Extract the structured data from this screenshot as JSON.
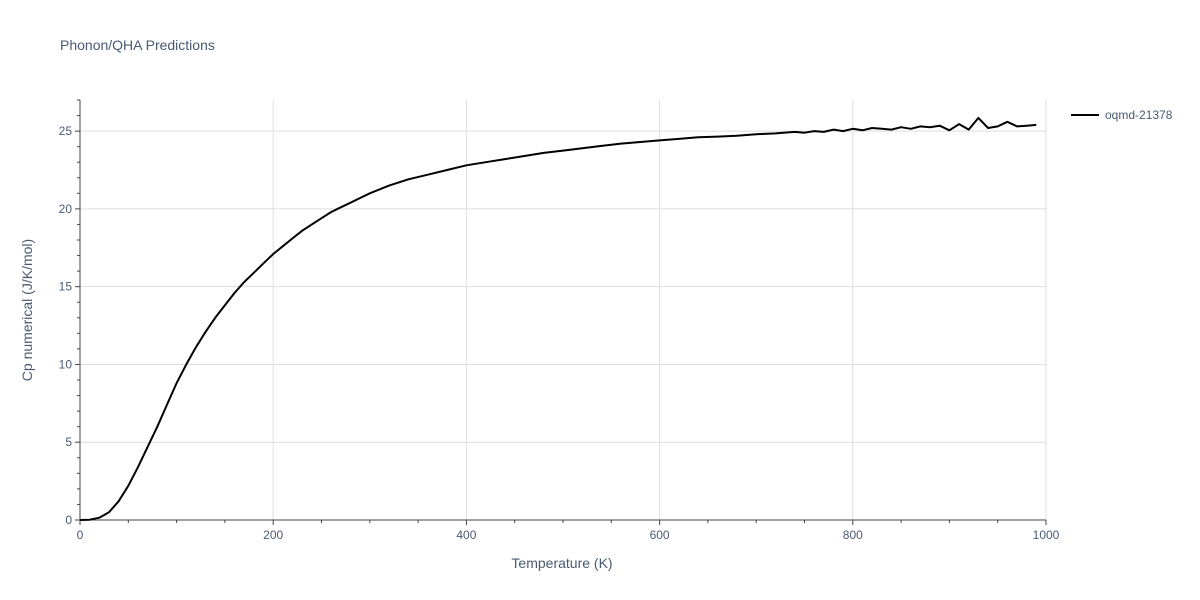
{
  "chart_data": {
    "type": "line",
    "title": "Phonon/QHA Predictions",
    "xlabel": "Temperature (K)",
    "ylabel": "Cp numerical (J/K/mol)",
    "xlim": [
      0,
      1000
    ],
    "ylim": [
      0,
      27
    ],
    "xticks": [
      0,
      200,
      400,
      600,
      800,
      1000
    ],
    "yticks": [
      0,
      5,
      10,
      15,
      20,
      25
    ],
    "grid": true,
    "legend": "right-top",
    "series": [
      {
        "name": "oqmd-21378",
        "color": "#000000",
        "x": [
          0,
          10,
          20,
          30,
          40,
          50,
          60,
          70,
          80,
          90,
          100,
          110,
          120,
          130,
          140,
          150,
          160,
          170,
          180,
          190,
          200,
          210,
          220,
          230,
          240,
          250,
          260,
          270,
          280,
          290,
          300,
          320,
          340,
          360,
          380,
          400,
          420,
          440,
          460,
          480,
          500,
          520,
          540,
          560,
          580,
          600,
          620,
          640,
          660,
          680,
          700,
          720,
          740,
          750,
          760,
          770,
          780,
          790,
          800,
          810,
          820,
          830,
          840,
          850,
          860,
          870,
          880,
          890,
          900,
          910,
          920,
          930,
          940,
          950,
          960,
          970,
          980,
          990
        ],
        "y": [
          0,
          0.02,
          0.15,
          0.5,
          1.2,
          2.2,
          3.4,
          4.7,
          6.0,
          7.4,
          8.8,
          10.0,
          11.1,
          12.1,
          13.0,
          13.8,
          14.6,
          15.3,
          15.9,
          16.5,
          17.1,
          17.6,
          18.1,
          18.6,
          19.0,
          19.4,
          19.8,
          20.1,
          20.4,
          20.7,
          21.0,
          21.5,
          21.9,
          22.2,
          22.5,
          22.8,
          23.0,
          23.2,
          23.4,
          23.6,
          23.75,
          23.9,
          24.05,
          24.2,
          24.3,
          24.4,
          24.5,
          24.6,
          24.65,
          24.7,
          24.8,
          24.85,
          24.95,
          24.9,
          25.0,
          24.95,
          25.1,
          25.0,
          25.15,
          25.05,
          25.2,
          25.15,
          25.1,
          25.25,
          25.15,
          25.3,
          25.25,
          25.35,
          25.05,
          25.45,
          25.1,
          25.85,
          25.2,
          25.3,
          25.6,
          25.3,
          25.35,
          25.4
        ]
      }
    ]
  }
}
